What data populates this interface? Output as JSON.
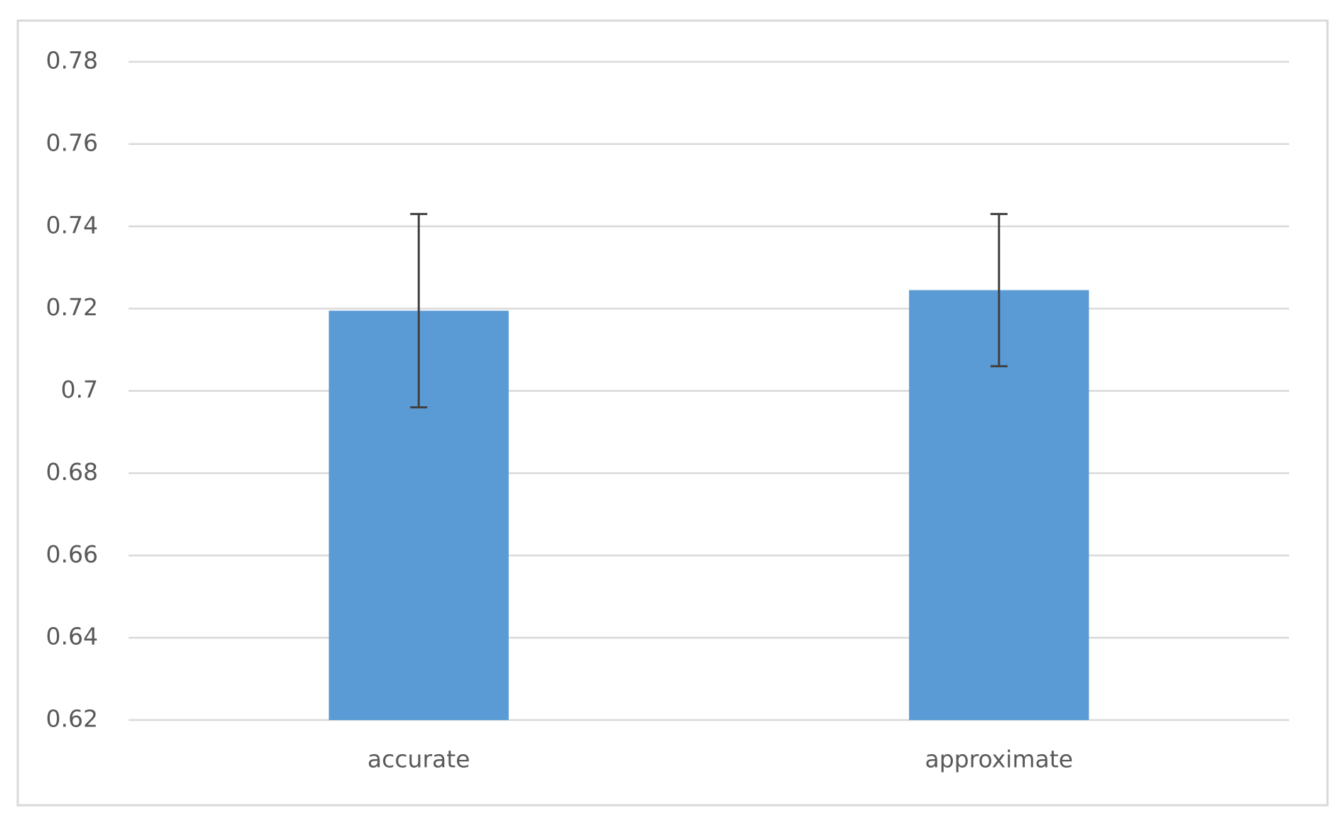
{
  "chart_data": {
    "type": "bar",
    "categories": [
      "accurate",
      "approximate"
    ],
    "values": [
      0.7195,
      0.7245
    ],
    "errors": [
      0.0235,
      0.0185
    ],
    "color": "#5b9bd5",
    "ylim": [
      0.62,
      0.78
    ],
    "yticks": [
      0.62,
      0.64,
      0.66,
      0.68,
      0.7,
      0.72,
      0.74,
      0.76,
      0.78
    ],
    "grid": true
  }
}
